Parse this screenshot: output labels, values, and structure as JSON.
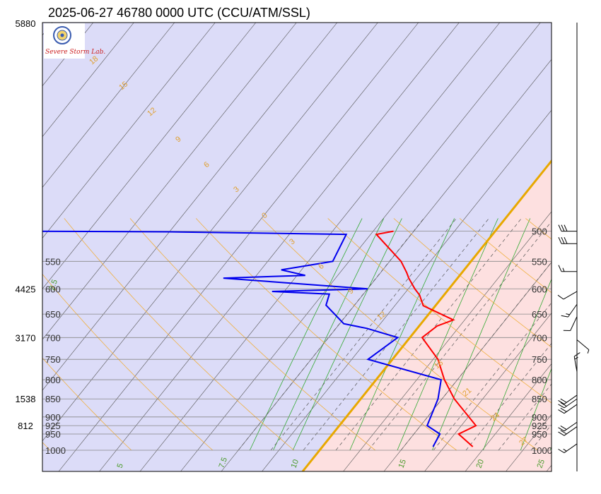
{
  "title": "2025-06-27 46780 0000 UTC (CCU/ATM/SSL)",
  "logo": {
    "text": "Severe Storm Lab."
  },
  "colors": {
    "cold_region": "#dcdcf8",
    "warm_region": "#fde0e0",
    "freezing_line": "#e8a800",
    "temperature": "#ff0000",
    "dewpoint": "#0000ee",
    "isobar": "#888888",
    "isotherm": "#555555",
    "dry_adiabat": "#f0b040",
    "moist_adiabat": "#555555",
    "mixing_ratio": "#33aa33"
  },
  "pressure_levels": [
    500,
    550,
    600,
    650,
    700,
    750,
    800,
    850,
    900,
    925,
    950,
    1000
  ],
  "heights": [
    {
      "p": 500,
      "label": "5880"
    },
    {
      "p": 600,
      "label": "4425"
    },
    {
      "p": 700,
      "label": "3170"
    },
    {
      "p": 850,
      "label": "1538"
    },
    {
      "p": 925,
      "label": "812"
    }
  ],
  "mixing_ratio_labels": [
    "2.5",
    "5",
    "7.5",
    "10",
    "15",
    "20",
    "25"
  ],
  "dry_adiabat_labels": [
    "18",
    "15",
    "12",
    "9",
    "6",
    "3",
    "0",
    "3",
    "6",
    "9",
    "12",
    "16",
    "21",
    "24",
    "27"
  ],
  "chart_data": {
    "type": "line",
    "title": "2025-06-27 46780 0000 UTC (CCU/ATM/SSL)",
    "ylim": [
      1000,
      500
    ],
    "y_scale": "log",
    "grid": true,
    "series": [
      {
        "name": "temperature",
        "points": [
          {
            "p": 989,
            "t": 18.5
          },
          {
            "p": 950,
            "t": 15.5
          },
          {
            "p": 925,
            "t": 16.8
          },
          {
            "p": 850,
            "t": 11.5
          },
          {
            "p": 800,
            "t": 8.4
          },
          {
            "p": 750,
            "t": 5.6
          },
          {
            "p": 700,
            "t": 1.5
          },
          {
            "p": 675,
            "t": 2.2
          },
          {
            "p": 662,
            "t": 3.6
          },
          {
            "p": 633,
            "t": -1.5
          },
          {
            "p": 612,
            "t": -3.0
          },
          {
            "p": 600,
            "t": -4.2
          },
          {
            "p": 580,
            "t": -6.0
          },
          {
            "p": 570,
            "t": -6.8
          },
          {
            "p": 550,
            "t": -8.6
          },
          {
            "p": 505,
            "t": -14.3
          },
          {
            "p": 500,
            "t": -12.5
          }
        ]
      },
      {
        "name": "dewpoint",
        "points": [
          {
            "p": 989,
            "t": 13.6
          },
          {
            "p": 950,
            "t": 13.2
          },
          {
            "p": 925,
            "t": 10.8
          },
          {
            "p": 850,
            "t": 9.5
          },
          {
            "p": 800,
            "t": 8.0
          },
          {
            "p": 750,
            "t": -3.0
          },
          {
            "p": 700,
            "t": -1.5
          },
          {
            "p": 680,
            "t": -6.2
          },
          {
            "p": 670,
            "t": -9.5
          },
          {
            "p": 632,
            "t": -13.5
          },
          {
            "p": 610,
            "t": -14.2
          },
          {
            "p": 605,
            "t": -21.5
          },
          {
            "p": 600,
            "t": -10.0
          },
          {
            "p": 580,
            "t": -28.8
          },
          {
            "p": 575,
            "t": -19.0
          },
          {
            "p": 565,
            "t": -22.5
          },
          {
            "p": 550,
            "t": -17.0
          },
          {
            "p": 505,
            "t": -18.0
          },
          {
            "p": 501,
            "t": -40.0
          },
          {
            "p": 500,
            "t": -58.0
          }
        ]
      }
    ],
    "wind_barbs": [
      {
        "p": 500,
        "dir": 270,
        "kt": 30
      },
      {
        "p": 520,
        "dir": 270,
        "kt": 30
      },
      {
        "p": 568,
        "dir": 270,
        "kt": 15
      },
      {
        "p": 605,
        "dir": 240,
        "kt": 10
      },
      {
        "p": 630,
        "dir": 215,
        "kt": 15
      },
      {
        "p": 655,
        "dir": 205,
        "kt": 10
      },
      {
        "p": 705,
        "dir": 130,
        "kt": 5
      },
      {
        "p": 780,
        "dir": 350,
        "kt": 15
      },
      {
        "p": 840,
        "dir": 235,
        "kt": 20
      },
      {
        "p": 850,
        "dir": 235,
        "kt": 20
      },
      {
        "p": 865,
        "dir": 235,
        "kt": 20
      },
      {
        "p": 915,
        "dir": 235,
        "kt": 20
      },
      {
        "p": 928,
        "dir": 235,
        "kt": 20
      },
      {
        "p": 980,
        "dir": 235,
        "kt": 15
      }
    ]
  }
}
